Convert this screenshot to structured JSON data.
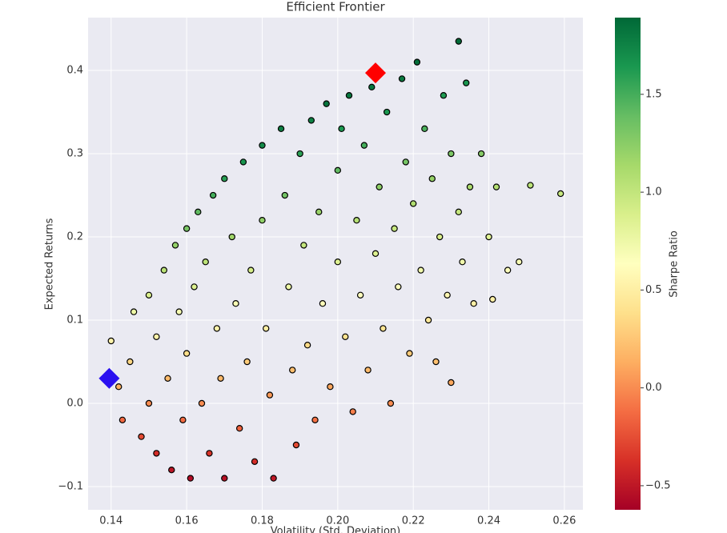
{
  "chart_data": {
    "type": "scatter",
    "title": "Efficient Frontier",
    "xlabel": "Volatility (Std. Deviation)",
    "ylabel": "Expected Returns",
    "colorbar_label": "Sharpe Ratio",
    "x": [
      0.14,
      0.142,
      0.143,
      0.145,
      0.146,
      0.148,
      0.15,
      0.15,
      0.152,
      0.152,
      0.154,
      0.155,
      0.156,
      0.157,
      0.158,
      0.159,
      0.16,
      0.16,
      0.161,
      0.162,
      0.163,
      0.164,
      0.165,
      0.166,
      0.167,
      0.168,
      0.169,
      0.17,
      0.17,
      0.172,
      0.173,
      0.174,
      0.175,
      0.176,
      0.177,
      0.178,
      0.18,
      0.18,
      0.181,
      0.182,
      0.183,
      0.185,
      0.186,
      0.187,
      0.188,
      0.189,
      0.19,
      0.191,
      0.192,
      0.193,
      0.194,
      0.195,
      0.196,
      0.197,
      0.198,
      0.2,
      0.2,
      0.201,
      0.202,
      0.203,
      0.204,
      0.205,
      0.206,
      0.207,
      0.208,
      0.209,
      0.21,
      0.211,
      0.212,
      0.213,
      0.214,
      0.215,
      0.216,
      0.217,
      0.218,
      0.219,
      0.22,
      0.221,
      0.222,
      0.223,
      0.224,
      0.225,
      0.226,
      0.227,
      0.228,
      0.229,
      0.23,
      0.23,
      0.232,
      0.232,
      0.233,
      0.234,
      0.235,
      0.236,
      0.238,
      0.24,
      0.241,
      0.242,
      0.245,
      0.248,
      0.251,
      0.259
    ],
    "y": [
      0.075,
      0.02,
      -0.02,
      0.05,
      0.11,
      -0.04,
      0.13,
      0.0,
      0.08,
      -0.06,
      0.16,
      0.03,
      -0.08,
      0.19,
      0.11,
      -0.02,
      0.21,
      0.06,
      -0.09,
      0.14,
      0.23,
      0.0,
      0.17,
      -0.06,
      0.25,
      0.09,
      0.03,
      0.27,
      -0.09,
      0.2,
      0.12,
      -0.03,
      0.29,
      0.05,
      0.16,
      -0.07,
      0.31,
      0.22,
      0.09,
      0.01,
      -0.09,
      0.33,
      0.25,
      0.14,
      0.04,
      -0.05,
      0.3,
      0.19,
      0.07,
      0.34,
      -0.02,
      0.23,
      0.12,
      0.36,
      0.02,
      0.28,
      0.17,
      0.33,
      0.08,
      0.37,
      -0.01,
      0.22,
      0.13,
      0.31,
      0.04,
      0.38,
      0.18,
      0.26,
      0.09,
      0.35,
      0.0,
      0.21,
      0.14,
      0.39,
      0.29,
      0.06,
      0.24,
      0.41,
      0.16,
      0.33,
      0.1,
      0.27,
      0.05,
      0.2,
      0.37,
      0.13,
      0.025,
      0.3,
      0.435,
      0.23,
      0.17,
      0.385,
      0.26,
      0.12,
      0.3,
      0.2,
      0.125,
      0.26,
      0.16,
      0.17,
      0.262,
      0.252
    ],
    "c": [
      0.54,
      0.14,
      -0.14,
      0.34,
      0.75,
      -0.27,
      0.87,
      0,
      0.53,
      -0.39,
      1.04,
      0.19,
      -0.51,
      1.21,
      0.7,
      -0.13,
      1.31,
      0.38,
      -0.56,
      0.86,
      1.41,
      0,
      1.03,
      -0.36,
      1.5,
      0.54,
      0.18,
      1.59,
      -0.53,
      1.16,
      0.69,
      -0.17,
      1.66,
      0.28,
      0.9,
      -0.39,
      1.72,
      1.22,
      0.5,
      0.05,
      -0.49,
      1.78,
      1.34,
      0.75,
      0.21,
      -0.26,
      1.58,
      0.99,
      0.36,
      1.76,
      -0.1,
      1.18,
      0.61,
      1.83,
      0.1,
      1.4,
      0.85,
      1.64,
      0.4,
      1.82,
      -0.05,
      1.07,
      0.63,
      1.5,
      0.19,
      1.82,
      0.86,
      1.23,
      0.42,
      1.64,
      0,
      0.98,
      0.65,
      1.8,
      1.33,
      0.27,
      1.09,
      1.86,
      0.72,
      1.48,
      0.45,
      1.2,
      0.22,
      0.88,
      1.62,
      0.57,
      0.11,
      1.3,
      1.88,
      0.99,
      0.73,
      1.65,
      1.11,
      0.51,
      1.26,
      0.83,
      0.52,
      1.07,
      0.65,
      0.69,
      1.04,
      0.97
    ],
    "markers": [
      {
        "x": 0.21,
        "y": 0.397,
        "color": "#ff0000"
      },
      {
        "x": 0.1395,
        "y": 0.03,
        "color": "#2a10f0"
      }
    ],
    "xlim": [
      0.1339,
      0.2649
    ],
    "ylim": [
      -0.1279,
      0.4635
    ],
    "clim": [
      -0.623,
      1.892
    ],
    "xticks": [
      0.14,
      0.16,
      0.18,
      {
        "value": 0.2,
        "label": "0.20"
      },
      0.22,
      0.24,
      0.26
    ],
    "yticks": [
      {
        "value": -0.1,
        "label": "−0.1"
      },
      {
        "value": 0,
        "label": "0.0"
      },
      0.1,
      0.2,
      0.3,
      0.4
    ],
    "cticks": [
      {
        "value": -0.5,
        "label": "−0.5"
      },
      {
        "value": 0,
        "label": "0.0"
      },
      0.5,
      {
        "value": 1,
        "label": "1.0"
      },
      1.5
    ],
    "colormap": [
      "#a50026",
      "#d73027",
      "#f46d43",
      "#fdae61",
      "#fee08b",
      "#ffffbf",
      "#d9ef8b",
      "#a6d96a",
      "#66bd63",
      "#1a9850",
      "#006837"
    ],
    "grid": true,
    "background": "#eaeaf2"
  }
}
